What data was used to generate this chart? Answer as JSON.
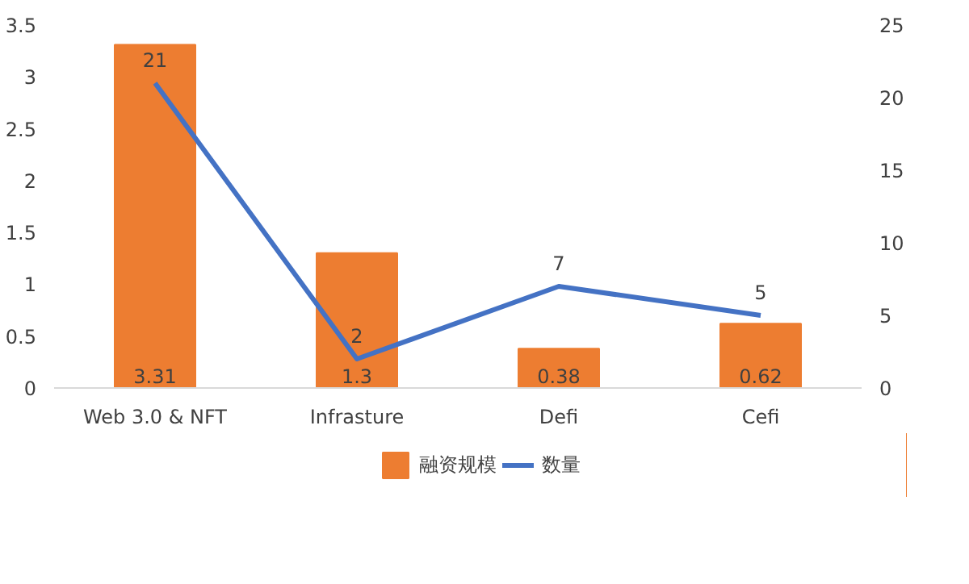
{
  "chart_data": {
    "type": "bar",
    "categories": [
      "Web 3.0 & NFT",
      "Infrasture",
      "Defi",
      "Cefi"
    ],
    "series": [
      {
        "name": "融资规模",
        "color": "#ed7d31",
        "values": [
          3.31,
          1.3,
          0.38,
          0.62
        ]
      },
      {
        "name": "数量",
        "type": "line",
        "axis": "y2",
        "color": "#4472c4",
        "values": [
          21,
          2,
          7,
          5
        ]
      }
    ],
    "ylim": [
      0,
      3.5
    ],
    "yticks": [
      0,
      0.5,
      1,
      1.5,
      2,
      2.5,
      3,
      3.5
    ],
    "y2lim": [
      0,
      25
    ],
    "y2ticks": [
      0,
      5,
      10,
      15,
      20,
      25
    ],
    "data_labels": true,
    "legend": "bottom",
    "grid": false,
    "marker": "none",
    "line_style": "solid"
  }
}
